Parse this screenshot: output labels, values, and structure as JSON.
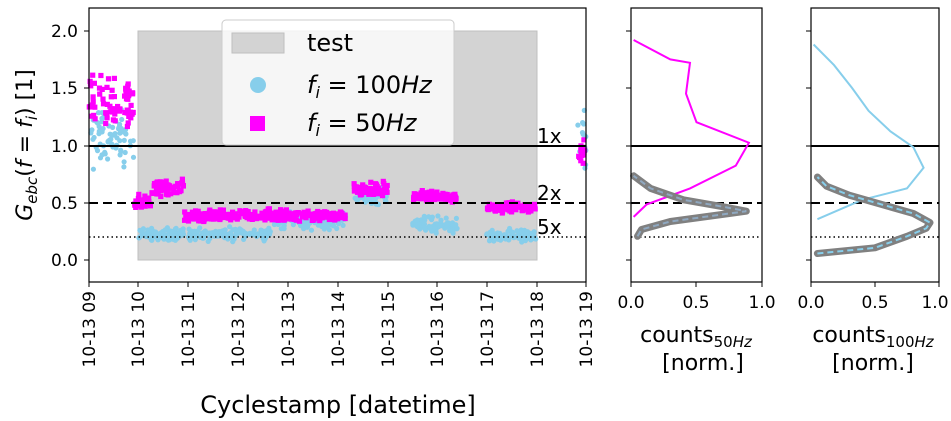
{
  "chart_data": [
    {
      "type": "scatter",
      "ylabel": "G_ebc(f = f_i) [1]",
      "xlabel": "Cyclestamp [datetime]",
      "ylim": [
        -0.2,
        2.2
      ],
      "yticks": [
        "0.0",
        "0.5",
        "1.0",
        "1.5",
        "2.0"
      ],
      "xticks": [
        "10-13 09",
        "10-13 10",
        "10-13 11",
        "10-13 12",
        "10-13 13",
        "10-13 14",
        "10-13 15",
        "10-13 16",
        "10-13 17",
        "10-13 18",
        "10-13 19"
      ],
      "xlim": [
        "2023-10-13 09:00",
        "2023-10-13 19:00"
      ],
      "legend": {
        "position": "top-center",
        "entries": [
          "test",
          "f_i = 100Hz",
          "f_i = 50Hz"
        ]
      },
      "test_span": {
        "x": [
          "2023-10-13 10:00",
          "2023-10-13 18:00"
        ],
        "y": [
          0.0,
          2.0
        ]
      },
      "hlines": [
        {
          "y": 1.0,
          "style": "solid",
          "label": "1x"
        },
        {
          "y": 0.5,
          "style": "dashed",
          "label": "2x"
        },
        {
          "y": 0.2,
          "style": "dotted",
          "label": "5x"
        }
      ],
      "series": [
        {
          "name": "f_i = 100Hz",
          "color": "#87ceeb",
          "marker": "circle",
          "clusters": [
            {
              "x": [
                "2023-10-13 09:00",
                "2023-10-13 09:55"
              ],
              "y_center": 1.05,
              "y_spread": 0.35
            },
            {
              "x": [
                "2023-10-13 10:00",
                "2023-10-13 10:55"
              ],
              "y_center": 0.22,
              "y_spread": 0.08
            },
            {
              "x": [
                "2023-10-13 11:00",
                "2023-10-13 12:40"
              ],
              "y_center": 0.22,
              "y_spread": 0.08
            },
            {
              "x": [
                "2023-10-13 12:40",
                "2023-10-13 14:10"
              ],
              "y_center": 0.34,
              "y_spread": 0.1
            },
            {
              "x": [
                "2023-10-13 14:20",
                "2023-10-13 15:00"
              ],
              "y_center": 0.55,
              "y_spread": 0.1
            },
            {
              "x": [
                "2023-10-13 15:30",
                "2023-10-13 16:25"
              ],
              "y_center": 0.3,
              "y_spread": 0.1
            },
            {
              "x": [
                "2023-10-13 17:00",
                "2023-10-13 18:00"
              ],
              "y_center": 0.2,
              "y_spread": 0.08
            },
            {
              "x": [
                "2023-10-13 18:50",
                "2023-10-13 19:00"
              ],
              "y_center": 1.0,
              "y_spread": 0.4
            }
          ]
        },
        {
          "name": "f_i = 50Hz",
          "color": "#ff00ff",
          "marker": "square",
          "clusters": [
            {
              "x": [
                "2023-10-13 09:00",
                "2023-10-13 09:55"
              ],
              "y_center": 1.35,
              "y_spread": 0.35
            },
            {
              "x": [
                "2023-10-13 09:55",
                "2023-10-13 10:15"
              ],
              "y_center": 0.5,
              "y_spread": 0.1
            },
            {
              "x": [
                "2023-10-13 10:15",
                "2023-10-13 10:55"
              ],
              "y_center": 0.62,
              "y_spread": 0.12
            },
            {
              "x": [
                "2023-10-13 10:55",
                "2023-10-13 14:10"
              ],
              "y_center": 0.38,
              "y_spread": 0.07
            },
            {
              "x": [
                "2023-10-13 14:20",
                "2023-10-13 15:00"
              ],
              "y_center": 0.62,
              "y_spread": 0.1
            },
            {
              "x": [
                "2023-10-13 15:30",
                "2023-10-13 16:25"
              ],
              "y_center": 0.55,
              "y_spread": 0.07
            },
            {
              "x": [
                "2023-10-13 17:00",
                "2023-10-13 18:00"
              ],
              "y_center": 0.45,
              "y_spread": 0.07
            },
            {
              "x": [
                "2023-10-13 18:50",
                "2023-10-13 19:00"
              ],
              "y_center": 0.95,
              "y_spread": 0.2
            }
          ]
        }
      ]
    },
    {
      "type": "line",
      "xlabel": "counts_50Hz [norm.]",
      "xlim": [
        0.0,
        1.0
      ],
      "xticks": [
        "0.0",
        "0.5",
        "1.0"
      ],
      "ylim": [
        -0.2,
        2.2
      ],
      "series": [
        {
          "name": "f_i = 50Hz",
          "color": "#ff00ff",
          "points": [
            [
              0.02,
              1.92
            ],
            [
              0.3,
              1.75
            ],
            [
              0.45,
              1.72
            ],
            [
              0.42,
              1.45
            ],
            [
              0.5,
              1.2
            ],
            [
              0.9,
              1.02
            ],
            [
              0.8,
              0.82
            ],
            [
              0.45,
              0.62
            ],
            [
              0.12,
              0.48
            ],
            [
              0.02,
              0.37
            ]
          ]
        },
        {
          "name": "fit",
          "color": "#808080",
          "overlay_color": "#8fa8c0",
          "points": [
            [
              0.05,
              0.2
            ],
            [
              0.08,
              0.26
            ],
            [
              0.3,
              0.33
            ],
            [
              0.75,
              0.4
            ],
            [
              0.88,
              0.42
            ],
            [
              0.7,
              0.46
            ],
            [
              0.4,
              0.52
            ],
            [
              0.15,
              0.62
            ],
            [
              0.02,
              0.73
            ]
          ]
        }
      ]
    },
    {
      "type": "line",
      "xlabel": "counts_100Hz [norm.]",
      "xlim": [
        0.0,
        1.0
      ],
      "xticks": [
        "0.0",
        "0.5",
        "1.0"
      ],
      "ylim": [
        -0.2,
        2.2
      ],
      "series": [
        {
          "name": "f_i = 100Hz",
          "color": "#87ceeb",
          "points": [
            [
              0.02,
              1.88
            ],
            [
              0.18,
              1.7
            ],
            [
              0.32,
              1.5
            ],
            [
              0.45,
              1.3
            ],
            [
              0.62,
              1.12
            ],
            [
              0.8,
              0.98
            ],
            [
              0.88,
              0.8
            ],
            [
              0.75,
              0.62
            ],
            [
              0.4,
              0.52
            ],
            [
              0.05,
              0.35
            ]
          ]
        },
        {
          "name": "fit",
          "color": "#808080",
          "overlay_color": "#87ceeb",
          "points": [
            [
              0.05,
              0.05
            ],
            [
              0.5,
              0.1
            ],
            [
              0.75,
              0.2
            ],
            [
              0.9,
              0.27
            ],
            [
              0.93,
              0.32
            ],
            [
              0.8,
              0.4
            ],
            [
              0.55,
              0.48
            ],
            [
              0.3,
              0.56
            ],
            [
              0.12,
              0.64
            ],
            [
              0.05,
              0.72
            ]
          ]
        }
      ]
    }
  ]
}
